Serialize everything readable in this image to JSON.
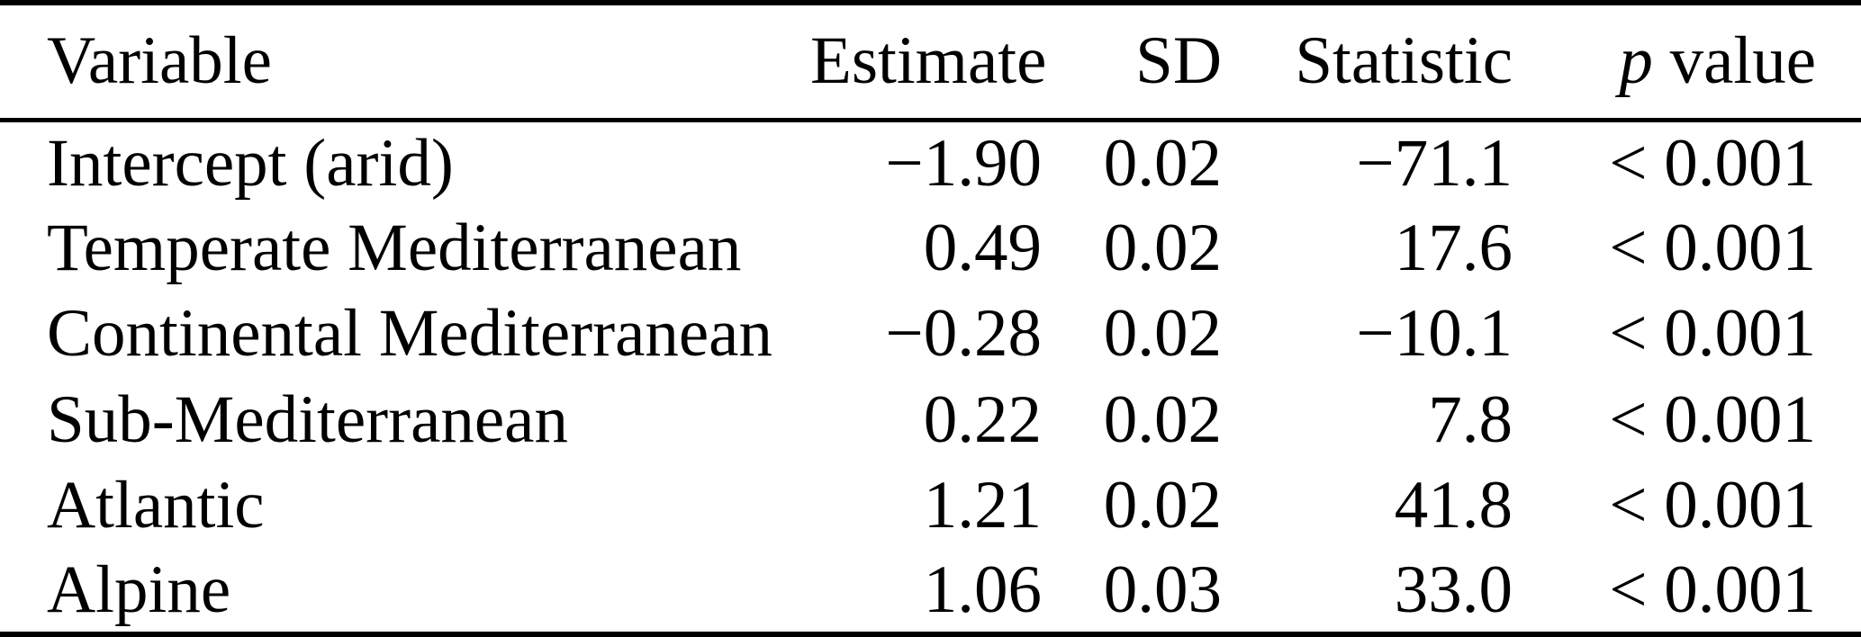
{
  "colors": {
    "background": "#ffffff",
    "text": "#000000",
    "rule": "#000000"
  },
  "table": {
    "headers": {
      "variable": "Variable",
      "estimate": "Estimate",
      "sd": "SD",
      "statistic": "Statistic",
      "p_symbol": "p",
      "p_rest": "value"
    },
    "rows": [
      {
        "variable": "Intercept (arid)",
        "estimate": "−1.90",
        "sd": "0.02",
        "statistic": "−71.1",
        "p_value": "< 0.001"
      },
      {
        "variable": "Temperate Mediterranean",
        "estimate": "0.49",
        "sd": "0.02",
        "statistic": "17.6",
        "p_value": "< 0.001"
      },
      {
        "variable": "Continental Mediterranean",
        "estimate": "−0.28",
        "sd": "0.02",
        "statistic": "−10.1",
        "p_value": "< 0.001"
      },
      {
        "variable": "Sub-Mediterranean",
        "estimate": "0.22",
        "sd": "0.02",
        "statistic": "7.8",
        "p_value": "< 0.001"
      },
      {
        "variable": "Atlantic",
        "estimate": "1.21",
        "sd": "0.02",
        "statistic": "41.8",
        "p_value": "< 0.001"
      },
      {
        "variable": "Alpine",
        "estimate": "1.06",
        "sd": "0.03",
        "statistic": "33.0",
        "p_value": "< 0.001"
      }
    ]
  },
  "chart_data": {
    "type": "table",
    "columns": [
      "Variable",
      "Estimate",
      "SD",
      "Statistic",
      "p value"
    ],
    "rows": [
      [
        "Intercept (arid)",
        -1.9,
        0.02,
        -71.1,
        "< 0.001"
      ],
      [
        "Temperate Mediterranean",
        0.49,
        0.02,
        17.6,
        "< 0.001"
      ],
      [
        "Continental Mediterranean",
        -0.28,
        0.02,
        -10.1,
        "< 0.001"
      ],
      [
        "Sub-Mediterranean",
        0.22,
        0.02,
        7.8,
        "< 0.001"
      ],
      [
        "Atlantic",
        1.21,
        0.02,
        41.8,
        "< 0.001"
      ],
      [
        "Alpine",
        1.06,
        0.03,
        33.0,
        "< 0.001"
      ]
    ]
  }
}
